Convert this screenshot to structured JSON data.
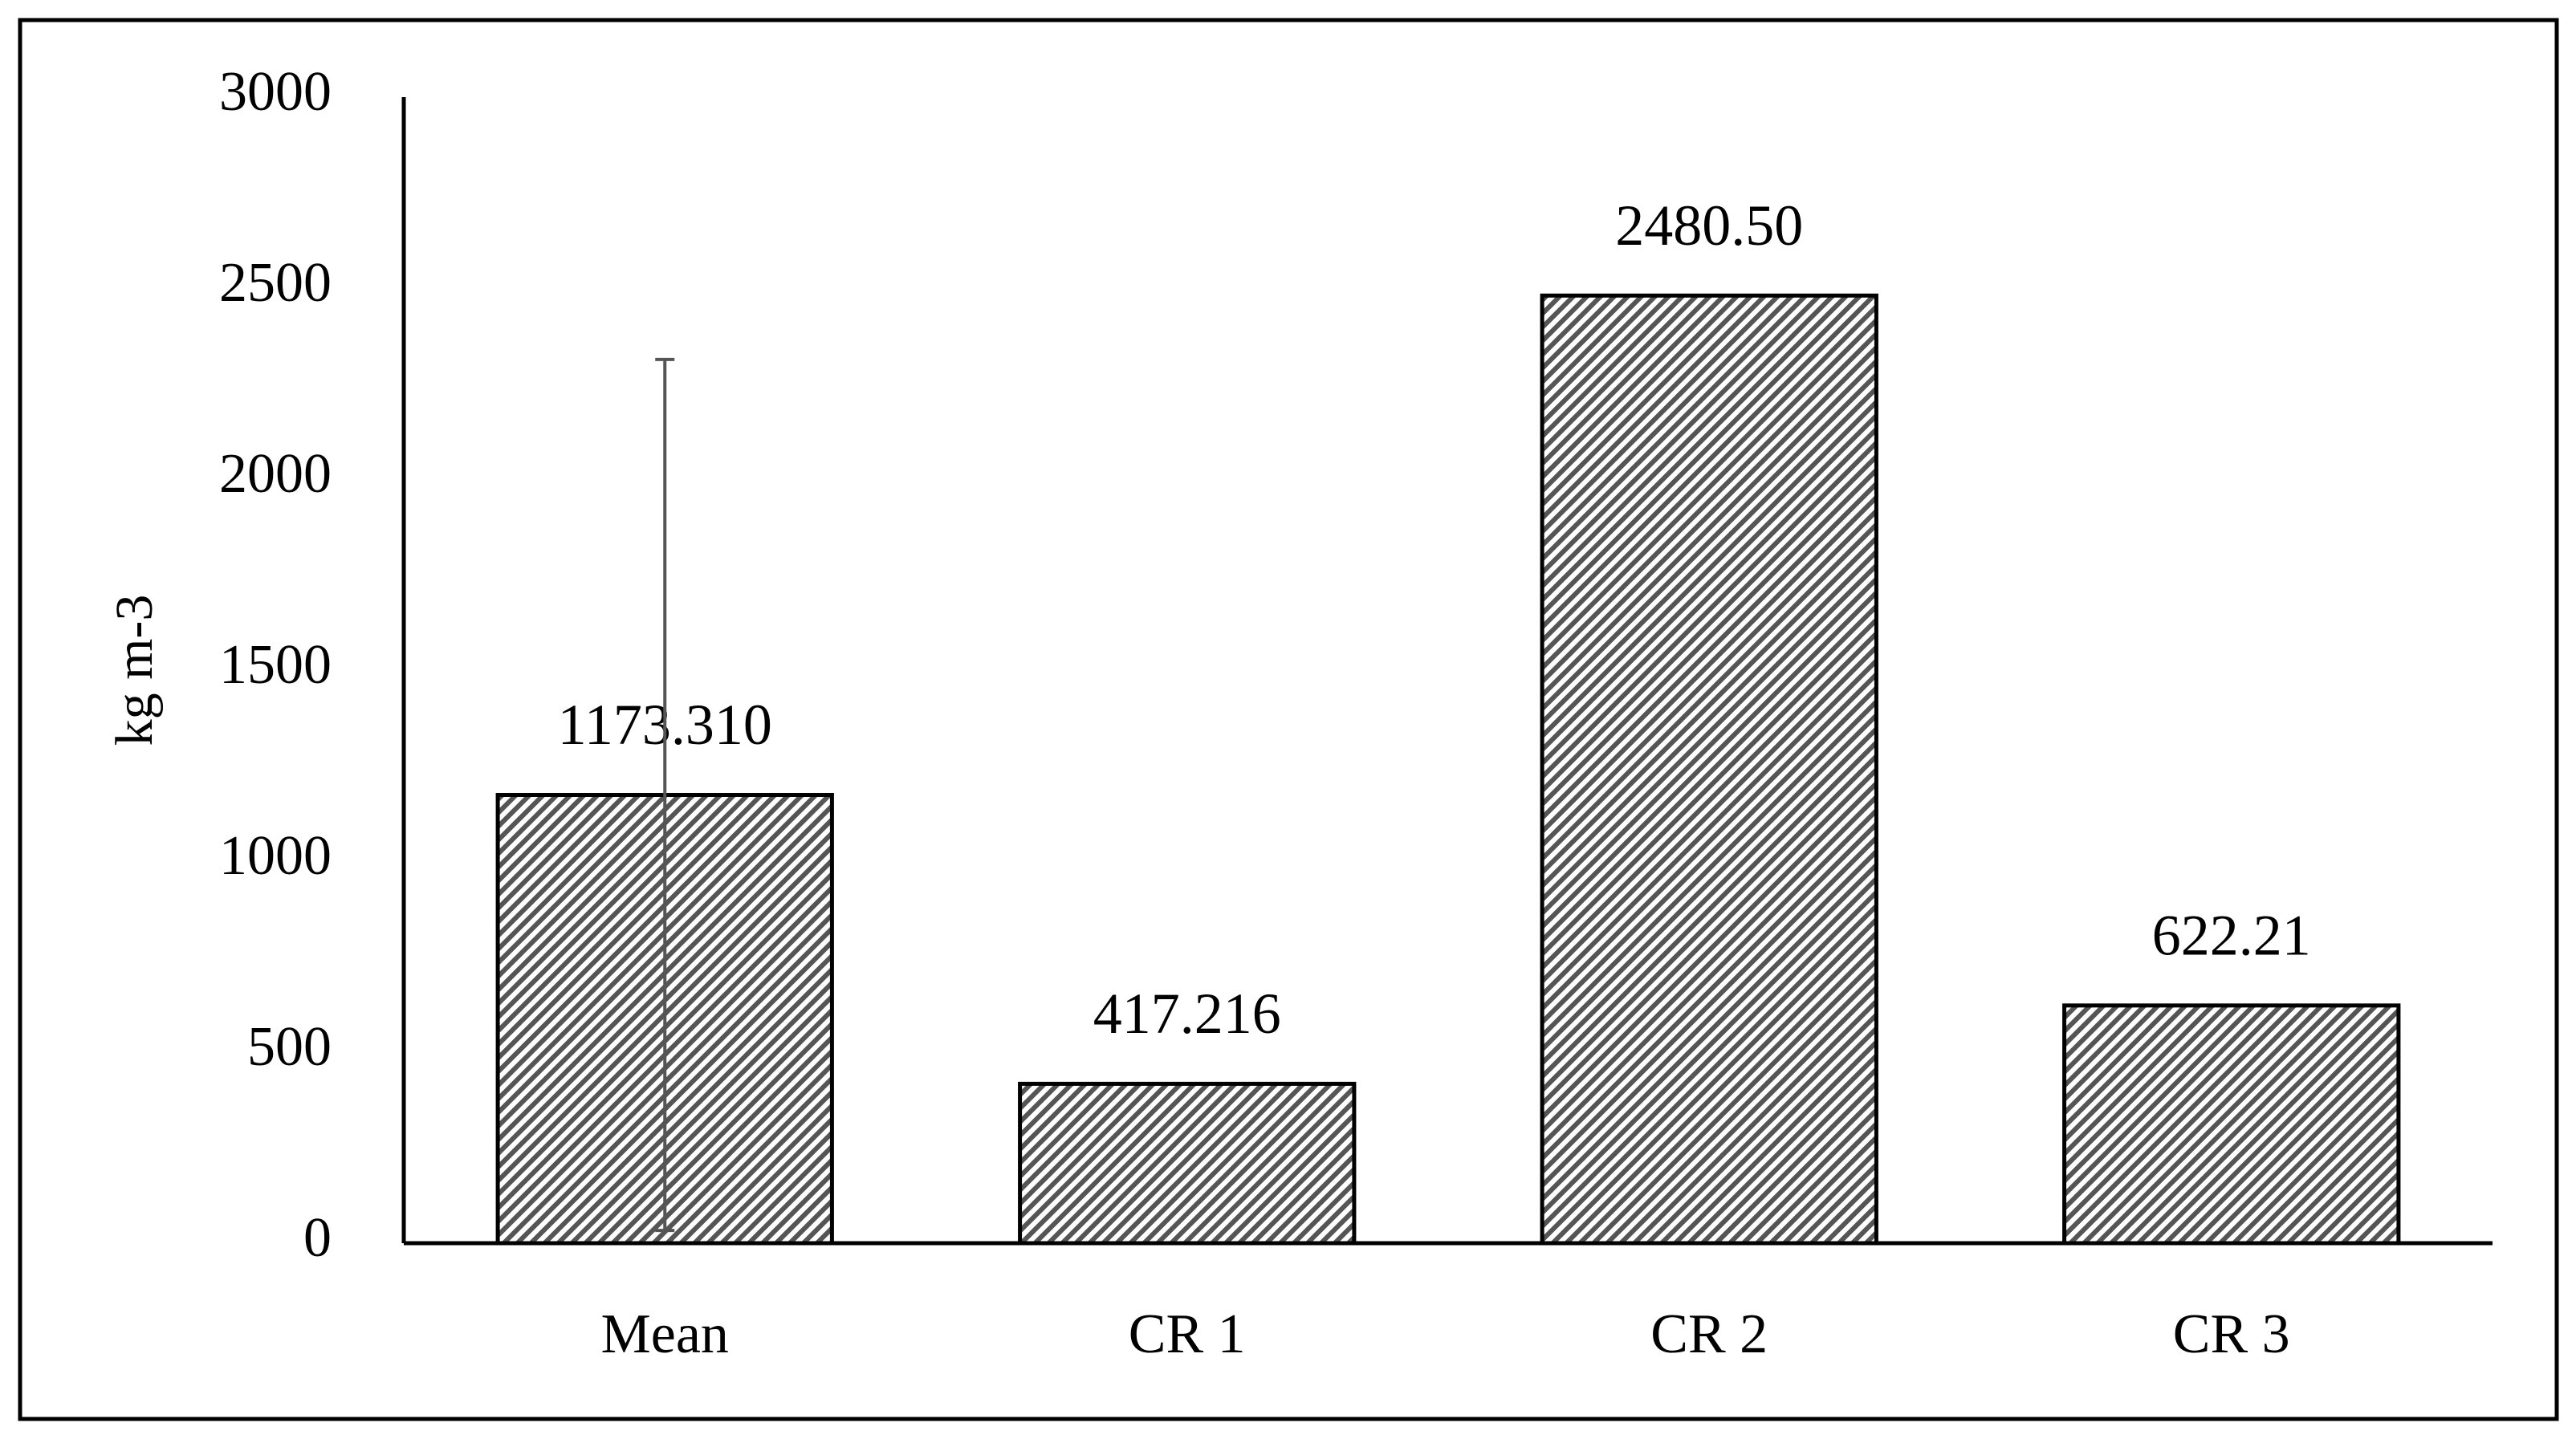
{
  "chart_data": {
    "type": "bar",
    "y_label": "kg m-3",
    "categories": [
      "Mean",
      "CR 1",
      "CR 2",
      "CR 3"
    ],
    "values": [
      1173.31,
      417.216,
      2480.5,
      622.21
    ],
    "value_labels": [
      "1173.310",
      "417.216",
      "2480.50",
      "622.21"
    ],
    "errors": [
      1140,
      null,
      null,
      null
    ],
    "color": "#555555",
    "ylim": [
      0,
      3000
    ],
    "yticks": [
      0,
      500,
      1000,
      1500,
      2000,
      2500,
      3000
    ],
    "grid": false
  }
}
